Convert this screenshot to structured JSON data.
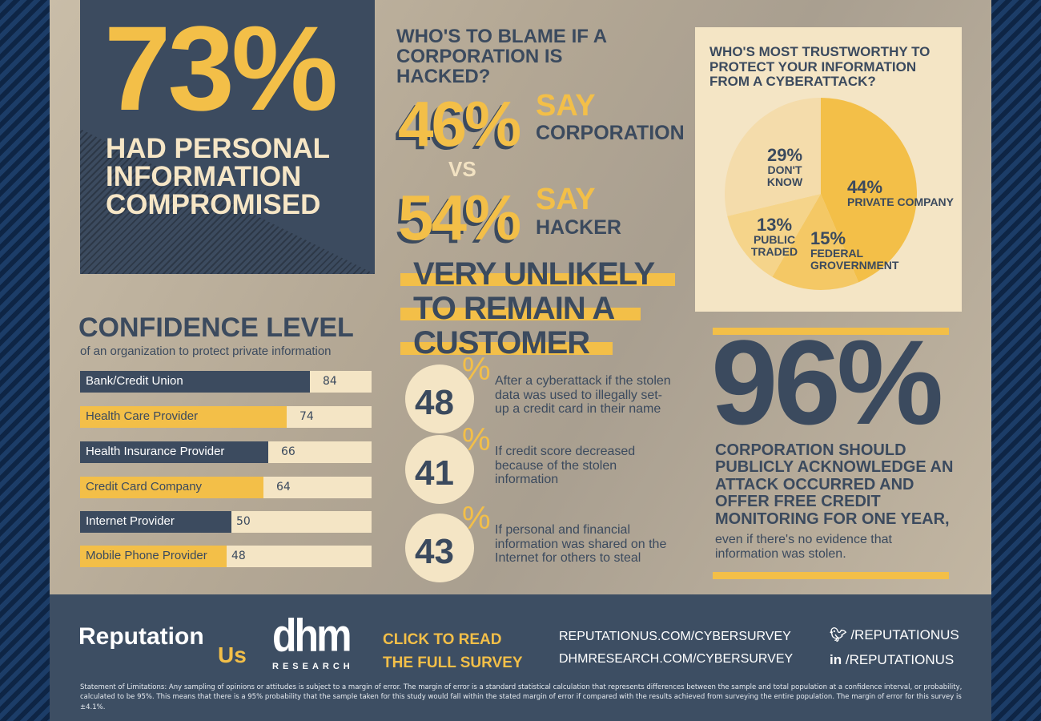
{
  "hero": {
    "value": "73%",
    "caption": "HAD PERSONAL INFORMATION COMPROMISED"
  },
  "blame": {
    "question": "WHO'S TO BLAME IF A CORPORATION IS HACKED?",
    "vs": "VS",
    "items": [
      {
        "pct": "46%",
        "say": "SAY",
        "who": "CORPORATION"
      },
      {
        "pct": "54%",
        "say": "SAY",
        "who": "HACKER"
      }
    ]
  },
  "unlikely": {
    "lines": [
      "VERY UNLIKELY",
      "TO REMAIN A",
      "CUSTOMER"
    ],
    "items": [
      {
        "num": "48",
        "pct": "%",
        "text": "After a cyberattack if the stolen data was used to illegally set-up a credit card in their name"
      },
      {
        "num": "41",
        "pct": "%",
        "text": "If credit score decreased because of the stolen information"
      },
      {
        "num": "43",
        "pct": "%",
        "text": "If personal and financial information was shared on the Internet for others to steal"
      }
    ]
  },
  "chart_data": [
    {
      "type": "bar",
      "orientation": "horizontal",
      "title": "CONFIDENCE LEVEL",
      "subtitle": "of an organization to protect private information",
      "categories": [
        "Bank/Credit Union",
        "Health Care Provider",
        "Health Insurance Provider",
        "Credit Card Company",
        "Internet Provider",
        "Mobile Phone Provider"
      ],
      "values": [
        84,
        74,
        66,
        64,
        50,
        48
      ],
      "colors": [
        "#3c4b5f",
        "#f3bf48",
        "#3c4b5f",
        "#f3bf48",
        "#3c4b5f",
        "#f3bf48"
      ]
    },
    {
      "type": "pie",
      "title": "WHO'S MOST TRUSTWORTHY TO PROTECT YOUR INFORMATION FROM A CYBERATTACK?",
      "slices": [
        {
          "label": "PRIVATE COMPANY",
          "value": 44,
          "text": "44%",
          "color": "#f3bf48"
        },
        {
          "label": "FEDERAL GROVERNMENT",
          "value": 15,
          "text": "15%",
          "color": "#f4c865"
        },
        {
          "label": "PUBLIC TRADED",
          "value": 13,
          "text": "13%",
          "color": "#f5d48a"
        },
        {
          "label": "DON'T KNOW",
          "value": 29,
          "text": "29%",
          "color": "#f4dcab"
        }
      ]
    }
  ],
  "stat96": {
    "value": "96%",
    "headline": "CORPORATION SHOULD PUBLICLY ACKNOWLEDGE AN ATTACK OCCURRED AND OFFER FREE CREDIT MONITORING FOR ONE YEAR,",
    "sub": "even if there's no evidence that information was stolen."
  },
  "footer": {
    "brand1": "Reputation",
    "brand1b": "Us",
    "brand2": "dhm",
    "brand2b": "RESEARCH",
    "cta": [
      "CLICK TO READ",
      "THE FULL SURVEY"
    ],
    "urls": [
      "REPUTATIONUS.COM/CYBERSURVEY",
      "DHMRESEARCH.COM/CYBERSURVEY"
    ],
    "social": [
      {
        "icon": "twitter-icon",
        "handle": "/REPUTATIONUS"
      },
      {
        "icon": "linkedin-icon",
        "handle": "/REPUTATIONUS"
      }
    ],
    "legal": "Statement of Limitations: Any sampling of opinions or attitudes is subject to a margin of error. The margin of error is a standard statistical calculation that represents differences between the sample and total population at a confidence interval, or probability, calculated to be 95%. This means that there is a 95% probability that the sample taken for this study would fall within the stated margin of error if compared with the results achieved from surveying the entire population. The margin of error for this survey is ±4.1%."
  },
  "colors": {
    "navy": "#3c4b5f",
    "gold": "#f3bf48",
    "cream": "#f4e5c5"
  }
}
